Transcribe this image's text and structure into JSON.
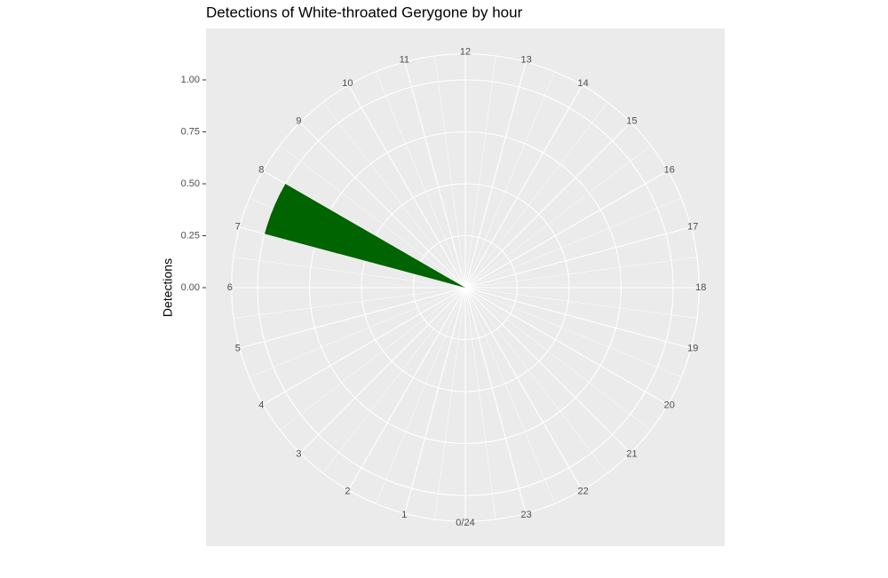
{
  "chart_data": {
    "type": "polar-histogram",
    "title": "Detections of White-throated Gerygone by hour",
    "y_label": "Detections",
    "bins": [
      0,
      1,
      2,
      3,
      4,
      5,
      6,
      7,
      8,
      9,
      10,
      11,
      12,
      13,
      14,
      15,
      16,
      17,
      18,
      19,
      20,
      21,
      22,
      23,
      24
    ],
    "values": [
      0,
      0,
      0,
      0,
      0,
      0,
      0,
      1,
      0,
      0,
      0,
      0,
      0,
      0,
      0,
      0,
      0,
      0,
      0,
      0,
      0,
      0,
      0,
      0
    ],
    "color": "#006400",
    "xlim": [
      0,
      24
    ],
    "xticks": [
      {
        "value": 0,
        "label": "0/24"
      },
      1,
      2,
      3,
      4,
      5,
      6,
      7,
      8,
      9,
      10,
      11,
      12,
      13,
      14,
      15,
      16,
      17,
      18,
      19,
      20,
      21,
      22,
      23
    ],
    "ylim": [
      0,
      1
    ],
    "yticks": [
      {
        "value": 0,
        "label": "0.00"
      },
      {
        "value": 0.25,
        "label": "0.25"
      },
      {
        "value": 0.5,
        "label": "0.50"
      },
      {
        "value": 0.75,
        "label": "0.75"
      },
      {
        "value": 1,
        "label": "1.00"
      }
    ],
    "grid": true
  }
}
